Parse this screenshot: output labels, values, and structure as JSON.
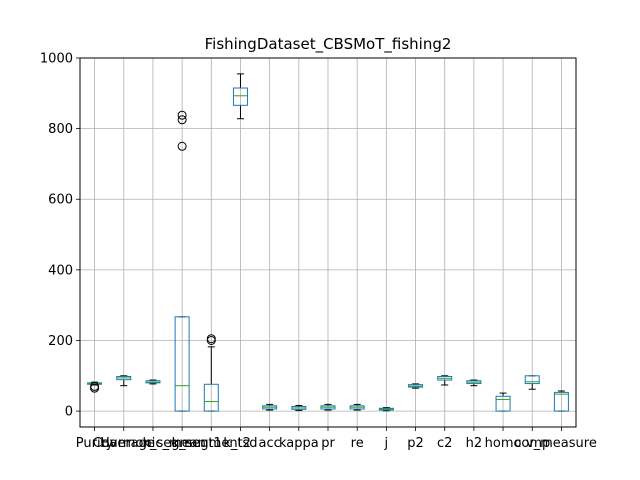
{
  "chart_data": {
    "type": "boxplot",
    "title": "FishingDataset_CBSMoT_fishing2",
    "xlabel": "",
    "ylabel": "",
    "ylim": [
      -45,
      1000
    ],
    "yticks": [
      0,
      200,
      400,
      600,
      800,
      1000
    ],
    "grid": true,
    "categories": [
      "Purity",
      "Coverage",
      "Harmonic_mean",
      "k_segment1",
      "k_segment2",
      "k_tsd",
      "acc",
      "kappa",
      "pr",
      "re",
      "j",
      "p2",
      "c2",
      "h2",
      "homo",
      "comp",
      "v_measure"
    ],
    "x_tick_labels": [
      "Purity",
      "Coverage",
      "Harmonic_mean",
      "k_segment1",
      "k_segment2",
      "k_tsd",
      "acc",
      "kappa",
      "pr",
      "re",
      "j",
      "p2",
      "c2",
      "h2",
      "homo",
      "comp",
      "v_measure"
    ],
    "boxes": [
      {
        "name": "Purity",
        "whislo": 74,
        "q1": 76,
        "med": 78,
        "q3": 80,
        "whishi": 82,
        "fliers": [
          65,
          70
        ]
      },
      {
        "name": "Coverage",
        "whislo": 72,
        "q1": 89,
        "med": 94,
        "q3": 98,
        "whishi": 100,
        "fliers": []
      },
      {
        "name": "Harmonic_mean",
        "whislo": 77,
        "q1": 80,
        "med": 82,
        "q3": 86,
        "whishi": 88,
        "fliers": []
      },
      {
        "name": "k_segment1",
        "whislo": 0,
        "q1": 0,
        "med": 72,
        "q3": 267,
        "whishi": 267,
        "fliers": [
          750,
          825,
          838
        ]
      },
      {
        "name": "k_segment2",
        "whislo": 0,
        "q1": 0,
        "med": 27,
        "q3": 76,
        "whishi": 182,
        "fliers": [
          200,
          205
        ]
      },
      {
        "name": "k_tsd",
        "whislo": 828,
        "q1": 866,
        "med": 893,
        "q3": 915,
        "whishi": 955,
        "fliers": []
      },
      {
        "name": "acc",
        "whislo": 3,
        "q1": 6,
        "med": 11,
        "q3": 15,
        "whishi": 19,
        "fliers": []
      },
      {
        "name": "kappa",
        "whislo": 2,
        "q1": 5,
        "med": 9,
        "q3": 13,
        "whishi": 16,
        "fliers": []
      },
      {
        "name": "pr",
        "whislo": 3,
        "q1": 6,
        "med": 11,
        "q3": 15,
        "whishi": 19,
        "fliers": []
      },
      {
        "name": "re",
        "whislo": 3,
        "q1": 6,
        "med": 11,
        "q3": 15,
        "whishi": 19,
        "fliers": []
      },
      {
        "name": "j",
        "whislo": 1,
        "q1": 3,
        "med": 6,
        "q3": 8,
        "whishi": 10,
        "fliers": []
      },
      {
        "name": "p2",
        "whislo": 65,
        "q1": 68,
        "med": 71,
        "q3": 75,
        "whishi": 77,
        "fliers": []
      },
      {
        "name": "c2",
        "whislo": 74,
        "q1": 88,
        "med": 93,
        "q3": 98,
        "whishi": 100,
        "fliers": []
      },
      {
        "name": "h2",
        "whislo": 72,
        "q1": 78,
        "med": 82,
        "q3": 86,
        "whishi": 88,
        "fliers": []
      },
      {
        "name": "homo",
        "whislo": 0,
        "q1": 0,
        "med": 33,
        "q3": 42,
        "whishi": 51,
        "fliers": []
      },
      {
        "name": "comp",
        "whislo": 62,
        "q1": 78,
        "med": 83,
        "q3": 100,
        "whishi": 100,
        "fliers": []
      },
      {
        "name": "v_measure",
        "whislo": 0,
        "q1": 0,
        "med": 48,
        "q3": 53,
        "whishi": 57,
        "fliers": []
      }
    ]
  },
  "colors": {
    "box": "#1f77b4",
    "median": "#2ca02c",
    "whisker": "#000000",
    "grid": "#b0b0b0",
    "axis": "#000000",
    "flier": "#000000"
  }
}
